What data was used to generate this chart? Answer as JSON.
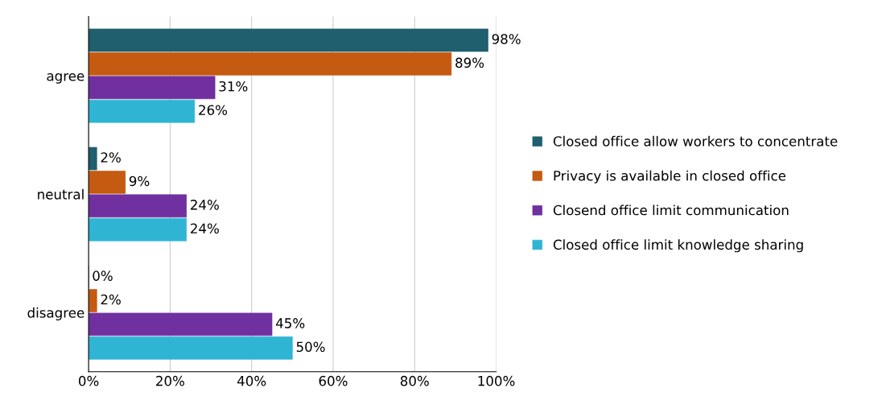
{
  "chart_data": {
    "type": "bar",
    "orientation": "horizontal",
    "categories": [
      "agree",
      "neutral",
      "disagree"
    ],
    "series": [
      {
        "name": "Closed office allow workers to concentrate",
        "color": "#1f5f6e",
        "values": [
          98,
          2,
          0
        ],
        "value_labels": [
          "98%",
          "2%",
          "0%"
        ]
      },
      {
        "name": "Privacy is available in closed office",
        "color": "#c55a11",
        "values": [
          89,
          9,
          2
        ],
        "value_labels": [
          "89%",
          "9%",
          "2%"
        ]
      },
      {
        "name": "Closend office limit communication",
        "color": "#7030a0",
        "values": [
          31,
          24,
          45
        ],
        "value_labels": [
          "31%",
          "24%",
          "45%"
        ]
      },
      {
        "name": "Closed office limit knowledge sharing",
        "color": "#2fb5d3",
        "values": [
          26,
          24,
          50
        ],
        "value_labels": [
          "26%",
          "24%",
          "50%"
        ]
      }
    ],
    "xlim": [
      0,
      100
    ],
    "xticks": [
      {
        "value": 0,
        "label": "0%"
      },
      {
        "value": 20,
        "label": "20%"
      },
      {
        "value": 40,
        "label": "40%"
      },
      {
        "value": 60,
        "label": "60%"
      },
      {
        "value": 80,
        "label": "80%"
      },
      {
        "value": 100,
        "label": "100%"
      }
    ],
    "grid": "x",
    "legend": "right"
  }
}
